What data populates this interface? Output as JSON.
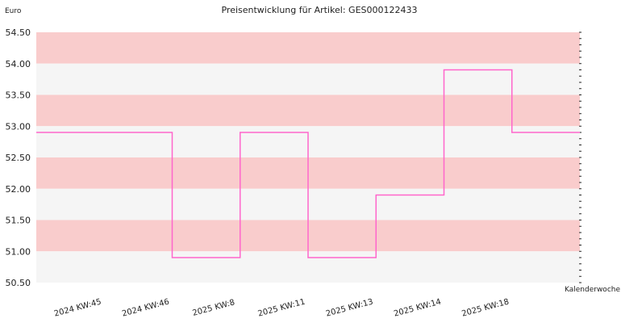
{
  "chart_data": {
    "type": "line",
    "step": true,
    "title": "Preisentwicklung für Artikel: GES000122433",
    "ylabel": "Euro",
    "xlabel": "Kalenderwoche",
    "ylim": [
      50.5,
      54.5
    ],
    "yticks": [
      "50.50",
      "51.00",
      "51.50",
      "52.00",
      "52.50",
      "53.00",
      "53.50",
      "54.00",
      "54.50"
    ],
    "categories": [
      "2024 KW:45",
      "2024 KW:46",
      "2025 KW:8",
      "2025 KW:11",
      "2025 KW:13",
      "2025 KW:14",
      "2025 KW:18"
    ],
    "series": [
      {
        "values": [
          52.9,
          50.9,
          52.9,
          50.9,
          51.9,
          53.9,
          52.9
        ]
      }
    ],
    "grid": true,
    "colors": {
      "line": "#ff66cc",
      "band_dark": "#f9cccc",
      "band_light": "#f5f5f5"
    }
  }
}
